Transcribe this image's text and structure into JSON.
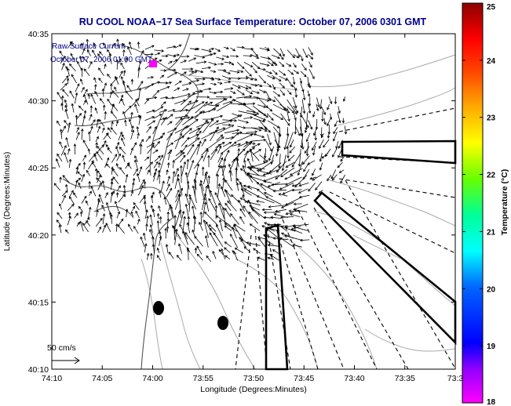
{
  "chart_data": {
    "type": "vector-field map",
    "title": "RU COOL  NOAA−17  Sea Surface Temperature:  October 07, 2006 0301 GMT",
    "xlabel": "Longitude (Degrees:Minutes)",
    "ylabel": "Latitude (Degrees:Minutes)",
    "x_ticks": [
      "74:10",
      "74:05",
      "74:00",
      "73:55",
      "73:50",
      "73:45",
      "73:40",
      "73:35",
      "73:3"
    ],
    "y_ticks": [
      "40:10",
      "40:15",
      "40:20",
      "40:25",
      "40:30",
      "40:35"
    ],
    "xlim_minutes_west": [
      70,
      30
    ],
    "ylim_minutes_north": [
      10,
      35
    ],
    "overlay_label_1": "Raw Surface Current",
    "overlay_label_2": "October 07, 2006 01:00 GMT",
    "scale_label": "50 cm/s",
    "colorbar": {
      "label": "Temperature (°C)",
      "ticks": [
        "18",
        "19",
        "20",
        "21",
        "22",
        "23",
        "24",
        "25"
      ],
      "range": [
        18,
        25
      ],
      "colors": [
        "#ff00ff",
        "#0000ff",
        "#00ffff",
        "#00ff00",
        "#ffff00",
        "#ff8000",
        "#ff0000",
        "#8b0000"
      ]
    },
    "colors": {
      "title": "#00008b",
      "arrows": "#000000",
      "coast": "#555555",
      "bathymetry": "#aaaaaa",
      "marker": "#ff00ff"
    }
  }
}
